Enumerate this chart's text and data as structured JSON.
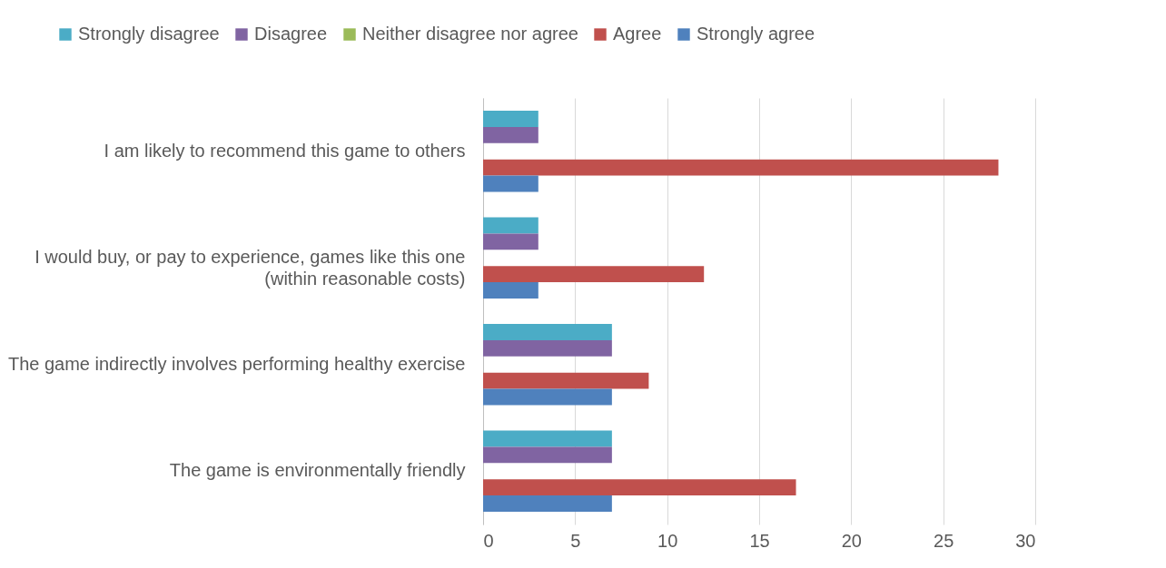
{
  "chart_data": {
    "type": "bar",
    "orientation": "horizontal",
    "categories": [
      "I am likely to recommend this game to others",
      "I would buy, or pay to experience, games like this one (within reasonable costs)",
      "The game indirectly involves performing healthy exercise",
      "The game is environmentally friendly"
    ],
    "series": [
      {
        "name": "Strongly disagree",
        "color": "#4bacc6",
        "values": [
          3,
          3,
          7,
          7
        ]
      },
      {
        "name": "Disagree",
        "color": "#8064a2",
        "values": [
          3,
          3,
          7,
          7
        ]
      },
      {
        "name": "Neither disagree nor agree",
        "color": "#9bbb59",
        "values": [
          0,
          0,
          0,
          0
        ]
      },
      {
        "name": "Agree",
        "color": "#c0504d",
        "values": [
          28,
          12,
          9,
          17
        ]
      },
      {
        "name": "Strongly agree",
        "color": "#4f81bd",
        "values": [
          3,
          3,
          7,
          7
        ]
      }
    ],
    "xlim": [
      0,
      30
    ],
    "xticks": [
      0,
      5,
      10,
      15,
      20,
      25,
      30
    ],
    "grid": "x",
    "legend": "top"
  }
}
